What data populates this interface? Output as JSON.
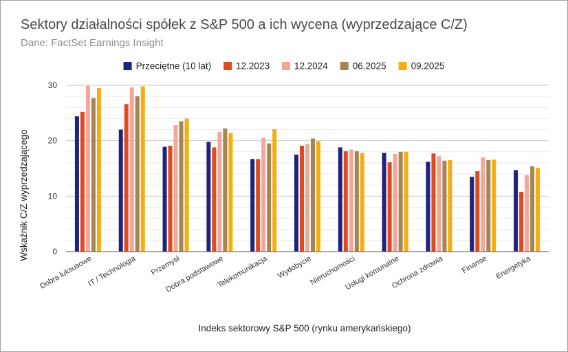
{
  "chart_data": {
    "type": "bar",
    "title": "Sektory działalności spółek z S&P 500 a ich wycena (wyprzedzające C/Z)",
    "subtitle": "Dane: FactSet Earnings Insight",
    "xlabel": "Indeks sektorowy S&P 500 (rynku amerykańskiego)",
    "ylabel": "Wskaźnik C/Z wyprzedzającego",
    "ylim": [
      0,
      30
    ],
    "yticks": [
      0,
      10,
      20,
      30
    ],
    "grid": true,
    "legend_position": "top",
    "categories": [
      "Dobra luksusowe",
      "IT / Technologia",
      "Przemysł",
      "Dobra podstawowe",
      "Telekomunikacja",
      "Wydobycie",
      "Nieruchomości",
      "Usługi komunalne",
      "Ochrona zdrowia",
      "Finanse",
      "Energetyka"
    ],
    "series": [
      {
        "name": "Przeciętne (10 lat)",
        "color": "#1f237e",
        "values": [
          24.4,
          22.0,
          18.9,
          19.8,
          16.7,
          17.5,
          18.8,
          17.8,
          16.2,
          13.5,
          14.7
        ]
      },
      {
        "name": "12.2023",
        "color": "#e24a1d",
        "values": [
          25.2,
          26.6,
          19.1,
          18.8,
          16.7,
          19.1,
          18.1,
          16.1,
          17.7,
          14.5,
          10.8
        ]
      },
      {
        "name": "12.2024",
        "color": "#f1a79a",
        "values": [
          29.9,
          29.6,
          22.8,
          21.6,
          20.5,
          19.4,
          18.4,
          17.6,
          17.2,
          17.0,
          13.8
        ]
      },
      {
        "name": "06.2025",
        "color": "#a68554",
        "values": [
          27.7,
          28.0,
          23.5,
          22.2,
          19.5,
          20.4,
          18.1,
          18.0,
          16.4,
          16.5,
          15.4
        ]
      },
      {
        "name": "09.2025",
        "color": "#f5ad0f",
        "values": [
          29.5,
          29.8,
          24.0,
          21.4,
          22.1,
          19.9,
          17.8,
          18.0,
          16.5,
          16.6,
          15.1
        ]
      }
    ]
  }
}
